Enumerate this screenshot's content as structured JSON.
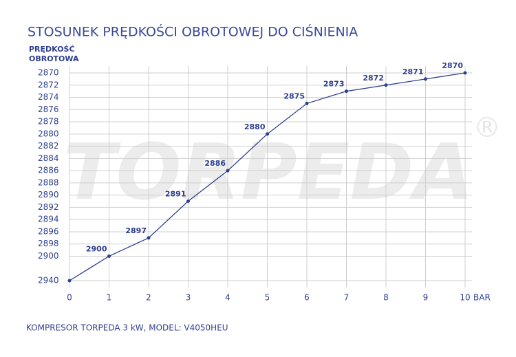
{
  "chart_data": {
    "type": "line",
    "title": "STOSUNEK PRĘDKOŚCI OBROTOWEJ DO CIŚNIENIA",
    "y_label": [
      "PRĘDKOŚĆ",
      "OBROTOWA"
    ],
    "x_label": "BAR",
    "footer": "KOMPRESOR TORPEDA 3 kW, MODEL: V4050HEU",
    "watermark": "TORPEDA",
    "watermark_mark": "®",
    "x": [
      0,
      1,
      2,
      3,
      4,
      5,
      6,
      7,
      8,
      9,
      10
    ],
    "series": [
      {
        "color": "#2e3f8f",
        "values": [
          2940,
          2900,
          2897,
          2891,
          2886,
          2880,
          2875,
          2873,
          2872,
          2871,
          2870
        ],
        "value_labels": [
          null,
          "2900",
          "2897",
          "2891",
          "2886",
          "2880",
          "2875",
          "2873",
          "2872",
          "2871",
          "2870"
        ]
      }
    ],
    "xlim": [
      0,
      10
    ],
    "xticks": [
      0,
      1,
      2,
      3,
      4,
      5,
      6,
      7,
      8,
      9,
      10
    ],
    "ylim": [
      2870,
      2940
    ],
    "yticks": [
      2870,
      2872,
      2874,
      2876,
      2878,
      2880,
      2882,
      2884,
      2886,
      2888,
      2890,
      2892,
      2894,
      2896,
      2898,
      2900,
      2940
    ],
    "y_inverted": true,
    "grid": true
  }
}
